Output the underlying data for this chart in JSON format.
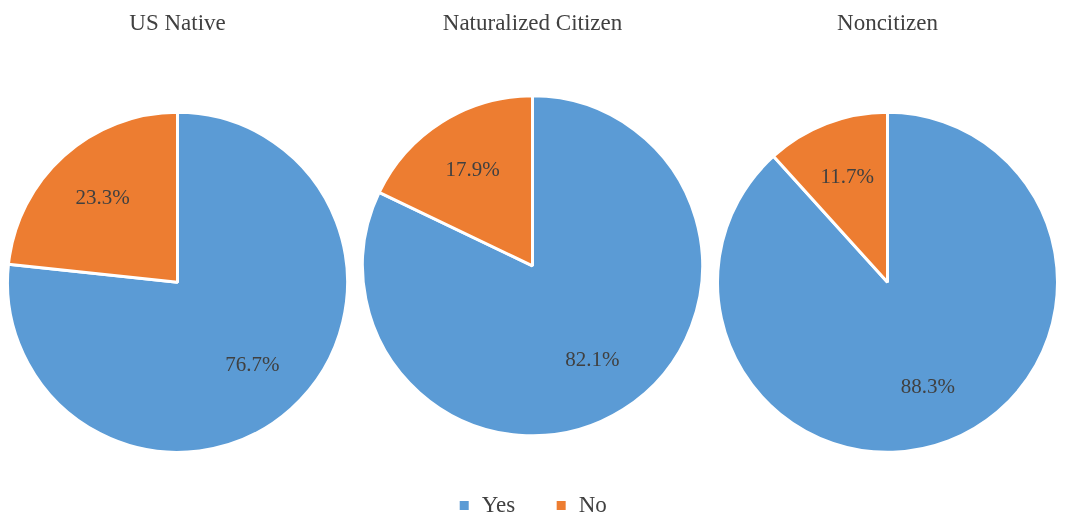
{
  "chart_data": [
    {
      "type": "pie",
      "title": "US Native",
      "categories": [
        null,
        null
      ],
      "values": [
        76.7,
        23.3
      ],
      "value_labels": [
        "76.7%",
        "23.3%"
      ],
      "colors": [
        "#5b9bd5",
        "#ed7d31"
      ],
      "legend": false
    },
    {
      "type": "pie",
      "title": "Naturalized Citizen",
      "categories": [
        "Yes",
        "No"
      ],
      "values": [
        82.1,
        17.9
      ],
      "value_labels": [
        "82.1%",
        "17.9%"
      ],
      "colors": [
        "#5b9bd5",
        "#ed7d31"
      ],
      "legend": "bottom"
    },
    {
      "type": "pie",
      "title": "Noncitizen",
      "categories": [
        null,
        null
      ],
      "values": [
        88.3,
        11.7
      ],
      "value_labels": [
        "88.3%",
        "11.7%"
      ],
      "colors": [
        "#5b9bd5",
        "#ed7d31"
      ],
      "legend": false
    }
  ]
}
